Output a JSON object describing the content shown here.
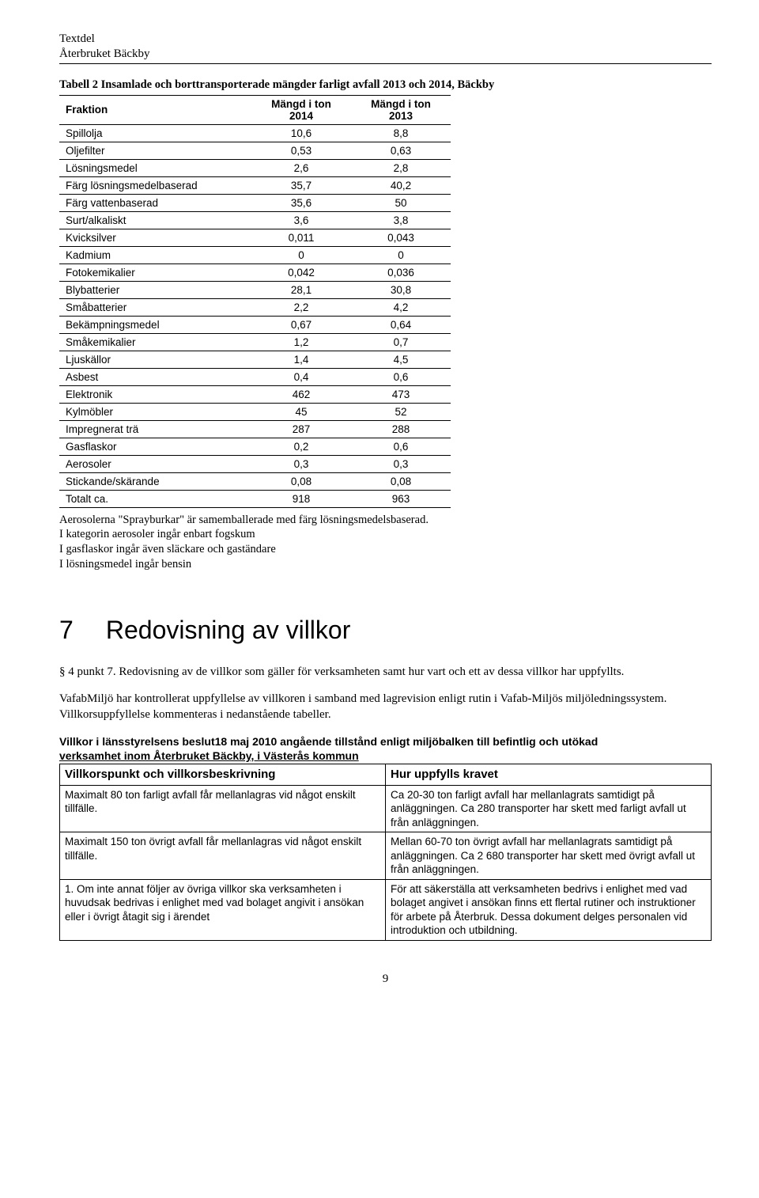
{
  "header": {
    "line1": "Textdel",
    "line2": "Återbruket Bäckby"
  },
  "table2": {
    "caption": "Tabell 2 Insamlade och borttransporterade mängder farligt avfall 2013 och 2014, Bäckby",
    "col0": "Fraktion",
    "col1": "Mängd i ton 2014",
    "col2": "Mängd i ton 2013",
    "rows": [
      {
        "f": "Spillolja",
        "a": "10,6",
        "b": "8,8"
      },
      {
        "f": "Oljefilter",
        "a": "0,53",
        "b": "0,63"
      },
      {
        "f": "Lösningsmedel",
        "a": "2,6",
        "b": "2,8"
      },
      {
        "f": "Färg lösningsmedelbaserad",
        "a": "35,7",
        "b": "40,2"
      },
      {
        "f": "Färg vattenbaserad",
        "a": "35,6",
        "b": "50"
      },
      {
        "f": "Surt/alkaliskt",
        "a": "3,6",
        "b": "3,8"
      },
      {
        "f": "Kvicksilver",
        "a": "0,011",
        "b": "0,043"
      },
      {
        "f": "Kadmium",
        "a": "0",
        "b": "0"
      },
      {
        "f": "Fotokemikalier",
        "a": "0,042",
        "b": "0,036"
      },
      {
        "f": "Blybatterier",
        "a": "28,1",
        "b": "30,8"
      },
      {
        "f": "Småbatterier",
        "a": "2,2",
        "b": "4,2"
      },
      {
        "f": "Bekämpningsmedel",
        "a": "0,67",
        "b": "0,64"
      },
      {
        "f": "Småkemikalier",
        "a": "1,2",
        "b": "0,7"
      },
      {
        "f": "Ljuskällor",
        "a": "1,4",
        "b": "4,5"
      },
      {
        "f": "Asbest",
        "a": "0,4",
        "b": "0,6"
      },
      {
        "f": "Elektronik",
        "a": "462",
        "b": "473"
      },
      {
        "f": "Kylmöbler",
        "a": "45",
        "b": "52"
      },
      {
        "f": "Impregnerat trä",
        "a": "287",
        "b": "288"
      },
      {
        "f": "Gasflaskor",
        "a": "0,2",
        "b": "0,6"
      },
      {
        "f": "Aerosoler",
        "a": "0,3",
        "b": "0,3"
      },
      {
        "f": "Stickande/skärande",
        "a": "0,08",
        "b": "0,08"
      },
      {
        "f": "Totalt ca.",
        "a": "918",
        "b": "963"
      }
    ]
  },
  "notes": {
    "l1": "Aerosolerna \"Sprayburkar\" är samemballerade med färg lösningsmedelsbaserad.",
    "l2": "I kategorin aerosoler ingår enbart fogskum",
    "l3": "I gasflaskor ingår även släckare och gaständare",
    "l4": "I lösningsmedel ingår bensin"
  },
  "section7": {
    "num": "7",
    "title": "Redovisning av villkor",
    "p1": "§ 4 punkt 7. Redovisning av de villkor som gäller för verksamheten samt hur vart och ett av dessa villkor har uppfyllts.",
    "p2": "VafabMiljö har kontrollerat uppfyllelse av villkoren i samband med lagrevision enligt rutin i Vafab-Miljös miljöledningssystem. Villkorsuppfyllelse kommenteras i nedanstående tabeller."
  },
  "villkor": {
    "title1": "Villkor i länsstyrelsens beslut18 maj 2010 angående tillstånd enligt miljöbalken till befintlig och utökad",
    "title2": "verksamhet inom Återbruket Bäckby, i Västerås kommun",
    "h1": "Villkorspunkt och villkorsbeskrivning",
    "h2": "Hur uppfylls kravet",
    "rows": [
      {
        "l": "Maximalt 80 ton farligt avfall får mellanlagras vid något enskilt tillfälle.",
        "r": "Ca 20-30 ton farligt avfall har mellanlagrats samtidigt på anläggningen. Ca 280 transporter har skett med farligt avfall ut från anläggningen."
      },
      {
        "l": "Maximalt 150 ton övrigt avfall får mellanlagras vid något enskilt tillfälle.",
        "r": "Mellan 60-70 ton övrigt avfall har mellanlagrats samtidigt på anläggningen. Ca 2 680 transporter har skett med övrigt avfall ut från anläggningen."
      },
      {
        "l": "1. Om inte annat följer av övriga villkor ska verksamheten i huvudsak bedrivas i enlighet med vad bolaget angivit i ansökan eller i övrigt åtagit sig i ärendet",
        "r": "För att säkerställa att verksamheten bedrivs i enlighet med vad bolaget angivet i ansökan finns ett flertal rutiner och instruktioner för arbete på Återbruk. Dessa dokument delges personalen vid introduktion och utbildning."
      }
    ]
  },
  "pagenum": "9"
}
